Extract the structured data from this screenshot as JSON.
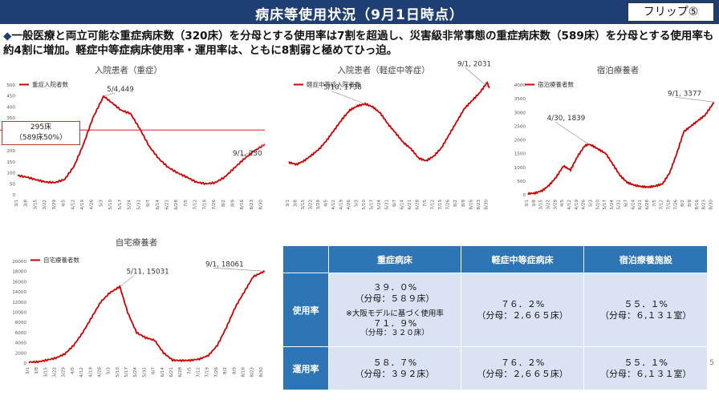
{
  "header": {
    "title": "病床等使用状況（9月1日時点）",
    "flip_label": "フリップ⑤"
  },
  "lead": {
    "bullet": "◆",
    "text": "一般医療と両立可能な重症病床数（320床）を分母とする使用率は7割を超過し、災害級非常事態の重症病床数（589床）を分母とする使用率も約4割に増加。軽症中等症病床使用率・運用率は、ともに8割弱と極めてひっ迫。"
  },
  "threshold_note": {
    "line1": "295床",
    "line2": "（589床50%）"
  },
  "colors": {
    "series": "#cc0000",
    "accent": "#1f3f73",
    "table_head": "#2e75b6",
    "table_cell": "#dae3f3"
  },
  "chart_data": [
    {
      "id": "severe",
      "type": "line",
      "title": "入院患者（重症）",
      "legend": "重症入院者数",
      "ylim": [
        0,
        500
      ],
      "yticks": [
        0,
        50,
        100,
        150,
        200,
        250,
        300,
        350,
        400,
        450,
        500
      ],
      "threshold": 295,
      "x_ticks": [
        "3/1",
        "3/8",
        "3/15",
        "3/22",
        "3/29",
        "4/5",
        "4/12",
        "4/19",
        "4/26",
        "5/3",
        "5/10",
        "5/17",
        "5/24",
        "5/31",
        "6/7",
        "6/14",
        "6/21",
        "6/28",
        "7/5",
        "7/12",
        "7/19",
        "7/26",
        "8/2",
        "8/9",
        "8/16",
        "8/23",
        "8/30"
      ],
      "annotations": [
        {
          "label": "5/4,449",
          "x": "5/4",
          "y": 449
        },
        {
          "label": "9/1, 230",
          "x": "9/1",
          "y": 230
        }
      ],
      "points": [
        [
          "3/1",
          88
        ],
        [
          "3/8",
          80
        ],
        [
          "3/15",
          68
        ],
        [
          "3/22",
          58
        ],
        [
          "3/29",
          56
        ],
        [
          "4/5",
          70
        ],
        [
          "4/12",
          130
        ],
        [
          "4/19",
          230
        ],
        [
          "4/26",
          350
        ],
        [
          "5/4",
          449
        ],
        [
          "5/10",
          420
        ],
        [
          "5/17",
          385
        ],
        [
          "5/24",
          370
        ],
        [
          "5/31",
          300
        ],
        [
          "6/7",
          220
        ],
        [
          "6/14",
          165
        ],
        [
          "6/21",
          125
        ],
        [
          "6/28",
          100
        ],
        [
          "7/5",
          80
        ],
        [
          "7/12",
          58
        ],
        [
          "7/19",
          50
        ],
        [
          "7/26",
          55
        ],
        [
          "8/2",
          80
        ],
        [
          "8/9",
          120
        ],
        [
          "8/16",
          160
        ],
        [
          "8/23",
          195
        ],
        [
          "9/1",
          230
        ]
      ]
    },
    {
      "id": "moderate",
      "type": "line",
      "title": "入院患者（軽症中等症）",
      "legend": "軽症中等症入院者数",
      "ylim": [
        0,
        2100
      ],
      "x_ticks": [
        "3/1",
        "3/8",
        "3/15",
        "3/22",
        "3/29",
        "4/5",
        "4/12",
        "4/19",
        "4/26",
        "5/3",
        "5/10",
        "5/17",
        "5/24",
        "5/31",
        "6/7",
        "6/14",
        "6/21",
        "6/28",
        "7/5",
        "7/12",
        "7/19",
        "7/26",
        "8/2",
        "8/9",
        "8/16",
        "8/23",
        "8/30"
      ],
      "annotations": [
        {
          "label": "5/10, 1738",
          "x": "5/10",
          "y": 1738
        },
        {
          "label": "9/1, 2031",
          "x": "9/1",
          "y": 2031
        }
      ],
      "points": [
        [
          "3/1",
          620
        ],
        [
          "3/8",
          580
        ],
        [
          "3/15",
          650
        ],
        [
          "3/22",
          760
        ],
        [
          "3/29",
          880
        ],
        [
          "4/5",
          1050
        ],
        [
          "4/12",
          1250
        ],
        [
          "4/19",
          1450
        ],
        [
          "4/26",
          1620
        ],
        [
          "5/3",
          1700
        ],
        [
          "5/10",
          1738
        ],
        [
          "5/17",
          1680
        ],
        [
          "5/24",
          1560
        ],
        [
          "5/31",
          1350
        ],
        [
          "6/7",
          1180
        ],
        [
          "6/14",
          1000
        ],
        [
          "6/21",
          880
        ],
        [
          "6/28",
          700
        ],
        [
          "7/5",
          650
        ],
        [
          "7/12",
          740
        ],
        [
          "7/19",
          900
        ],
        [
          "7/26",
          1150
        ],
        [
          "8/2",
          1400
        ],
        [
          "8/9",
          1650
        ],
        [
          "8/16",
          1800
        ],
        [
          "8/23",
          1950
        ],
        [
          "8/30",
          2150
        ],
        [
          "9/1",
          2031
        ]
      ]
    },
    {
      "id": "hotel",
      "type": "line",
      "title": "宿泊療養者",
      "legend": "宿泊療養者数",
      "ylim": [
        0,
        4000
      ],
      "yticks": [
        0,
        500,
        1000,
        1500,
        2000,
        2500,
        3000,
        3500,
        4000
      ],
      "x_ticks": [
        "3/1",
        "3/8",
        "3/15",
        "3/22",
        "3/29",
        "4/5",
        "4/12",
        "4/19",
        "4/26",
        "5/3",
        "5/10",
        "5/17",
        "5/24",
        "5/31",
        "6/7",
        "6/14",
        "6/21",
        "6/28",
        "7/5",
        "7/12",
        "7/19",
        "7/26",
        "8/2",
        "8/9",
        "8/16",
        "8/23",
        "8/30"
      ],
      "annotations": [
        {
          "label": "4/30, 1839",
          "x": "4/30",
          "y": 1839
        },
        {
          "label": "9/1, 3377",
          "x": "9/1",
          "y": 3377
        }
      ],
      "points": [
        [
          "3/1",
          40
        ],
        [
          "3/8",
          60
        ],
        [
          "3/15",
          150
        ],
        [
          "3/22",
          350
        ],
        [
          "3/29",
          650
        ],
        [
          "4/5",
          1050
        ],
        [
          "4/12",
          900
        ],
        [
          "4/19",
          1400
        ],
        [
          "4/26",
          1780
        ],
        [
          "4/30",
          1839
        ],
        [
          "5/3",
          1800
        ],
        [
          "5/10",
          1650
        ],
        [
          "5/17",
          1500
        ],
        [
          "5/24",
          1100
        ],
        [
          "5/31",
          700
        ],
        [
          "6/7",
          450
        ],
        [
          "6/14",
          350
        ],
        [
          "6/21",
          300
        ],
        [
          "6/28",
          280
        ],
        [
          "7/5",
          320
        ],
        [
          "7/12",
          400
        ],
        [
          "7/19",
          800
        ],
        [
          "7/26",
          1500
        ],
        [
          "8/2",
          2300
        ],
        [
          "8/9",
          2500
        ],
        [
          "8/16",
          2700
        ],
        [
          "8/23",
          2900
        ],
        [
          "9/1",
          3377
        ]
      ]
    },
    {
      "id": "home",
      "type": "line",
      "title": "自宅療養者",
      "legend": "自宅療養者数",
      "ylim": [
        0,
        20000
      ],
      "yticks": [
        0,
        2000,
        4000,
        6000,
        8000,
        10000,
        12000,
        14000,
        16000,
        18000,
        20000
      ],
      "x_ticks": [
        "3/1",
        "3/8",
        "3/15",
        "3/22",
        "3/29",
        "4/5",
        "4/12",
        "4/19",
        "4/26",
        "5/3",
        "5/10",
        "5/17",
        "5/24",
        "5/31",
        "6/7",
        "6/14",
        "6/21",
        "6/28",
        "7/5",
        "7/12",
        "7/19",
        "7/26",
        "8/2",
        "8/9",
        "8/16",
        "8/23",
        "8/30"
      ],
      "annotations": [
        {
          "label": "5/11, 15031",
          "x": "5/11",
          "y": 15031
        },
        {
          "label": "9/1, 18061",
          "x": "9/1",
          "y": 18061
        }
      ],
      "points": [
        [
          "3/1",
          200
        ],
        [
          "3/8",
          250
        ],
        [
          "3/15",
          600
        ],
        [
          "3/22",
          1000
        ],
        [
          "3/29",
          1800
        ],
        [
          "4/5",
          3500
        ],
        [
          "4/12",
          6000
        ],
        [
          "4/19",
          9000
        ],
        [
          "4/26",
          12000
        ],
        [
          "5/3",
          13800
        ],
        [
          "5/11",
          15031
        ],
        [
          "5/17",
          10000
        ],
        [
          "5/24",
          6000
        ],
        [
          "5/31",
          5000
        ],
        [
          "6/7",
          4500
        ],
        [
          "6/14",
          2000
        ],
        [
          "6/21",
          600
        ],
        [
          "6/28",
          500
        ],
        [
          "7/5",
          550
        ],
        [
          "7/12",
          800
        ],
        [
          "7/19",
          1500
        ],
        [
          "7/26",
          3500
        ],
        [
          "8/2",
          7000
        ],
        [
          "8/9",
          11000
        ],
        [
          "8/16",
          14000
        ],
        [
          "8/23",
          17000
        ],
        [
          "9/1",
          18061
        ]
      ]
    }
  ],
  "table": {
    "headers": [
      "重症病床",
      "軽症中等症病床",
      "宿泊療養施設"
    ],
    "rows": [
      {
        "label": "使用率",
        "cells": [
          {
            "main": "３９．０%",
            "sub": "（分母：５８９床）",
            "note1": "※大阪モデルに基づく使用率",
            "note2": "７１．９%",
            "note3": "（分母：３２０床）"
          },
          {
            "main": "７６．２%",
            "sub": "（分母：２,６６５床）"
          },
          {
            "main": "５５．１%",
            "sub": "（分母：６,１３１室）"
          }
        ]
      },
      {
        "label": "運用率",
        "cells": [
          {
            "main": "５８．７%",
            "sub": "（分母：３９２床）"
          },
          {
            "main": "７６．２%",
            "sub": "（分母：２,６６５床）"
          },
          {
            "main": "５５．１%",
            "sub": "（分母：６,１３１室）"
          }
        ]
      }
    ]
  },
  "page_number": "5"
}
